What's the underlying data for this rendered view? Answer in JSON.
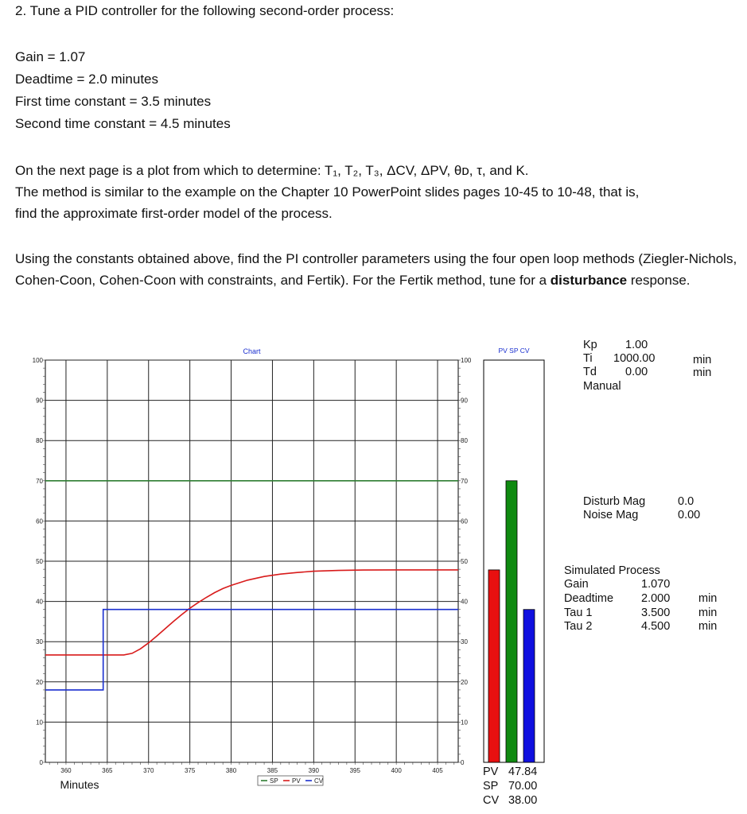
{
  "question": {
    "title": "2. Tune a PID controller for the following second-order process:",
    "params": [
      "Gain = 1.07",
      "Deadtime = 2.0 minutes",
      "First time constant = 3.5 minutes",
      "Second time constant = 4.5 minutes"
    ],
    "paragraph1_line1": "On the next page is a plot from which to determine: T₁, T₂, T₃, ΔCV, ΔPV, θᴅ, τ, and K.",
    "paragraph1_line2": "The method is similar to the example on the Chapter 10 PowerPoint slides pages 10-45 to 10-48, that is,",
    "paragraph1_line3": "find the approximate first-order model of the process.",
    "paragraph2_text": "Using the constants obtained above, find the PI controller parameters using the four open loop methods (Ziegler-Nichols, Cohen-Coon, Cohen-Coon with constraints, and Fertik). For the Fertik method, tune for a ",
    "paragraph2_bold": "disturbance",
    "paragraph2_end": " response."
  },
  "chart_data": [
    {
      "type": "line",
      "title": "Chart",
      "xlabel": "Minutes",
      "ylabel": "",
      "xlim": [
        357.5,
        407.5
      ],
      "ylim": [
        0,
        100
      ],
      "x_ticks": [
        360,
        365,
        370,
        375,
        380,
        385,
        390,
        395,
        400,
        405
      ],
      "y_ticks": [
        0,
        10,
        20,
        30,
        40,
        50,
        60,
        70,
        80,
        90,
        100
      ],
      "grid": true,
      "legend": {
        "placement": "bottom-center",
        "items": [
          "SP",
          "PV",
          "CV"
        ]
      },
      "series": [
        {
          "name": "SP",
          "color": "#2e7d32",
          "x": [
            357.5,
            407.5
          ],
          "y": [
            70,
            70
          ]
        },
        {
          "name": "PV",
          "color": "#d81b1b",
          "x": [
            357.5,
            367,
            368,
            369,
            370,
            371,
            372,
            373,
            374,
            375,
            376,
            377,
            378,
            379,
            380,
            382,
            384,
            386,
            388,
            390,
            393,
            396,
            400,
            407.5
          ],
          "y": [
            26.7,
            26.7,
            27.1,
            28.2,
            29.7,
            31.4,
            33.2,
            35.0,
            36.7,
            38.3,
            39.7,
            41.0,
            42.2,
            43.2,
            44.0,
            45.3,
            46.2,
            46.8,
            47.2,
            47.5,
            47.7,
            47.8,
            47.84,
            47.84
          ]
        },
        {
          "name": "CV",
          "color": "#1a2fcf",
          "x": [
            357.5,
            364.5,
            364.5,
            407.5
          ],
          "y": [
            18,
            18,
            38,
            38
          ]
        }
      ]
    },
    {
      "type": "bar",
      "title": "PV SP CV",
      "categories": [
        "PV",
        "SP",
        "CV"
      ],
      "values": [
        47.84,
        70.0,
        38.0
      ],
      "colors": [
        "#e81010",
        "#0f8a10",
        "#1010e0"
      ],
      "ylim": [
        0,
        100
      ]
    }
  ],
  "readout": {
    "pv_label": "PV",
    "pv_value": "47.84",
    "sp_label": "SP",
    "sp_value": "70.00",
    "cv_label": "CV",
    "cv_value": "38.00"
  },
  "controller": {
    "kp_label": "Kp",
    "kp_value": "1.00",
    "ti_label": "Ti",
    "ti_value": "1000.00",
    "ti_unit": "min",
    "td_label": "Td",
    "td_value": "0.00",
    "td_unit": "min",
    "mode": "Manual"
  },
  "disturbance": {
    "disturb_label": "Disturb Mag",
    "disturb_value": "0.0",
    "noise_label": "Noise Mag",
    "noise_value": "0.00"
  },
  "process": {
    "title": "Simulated Process",
    "gain_label": "Gain",
    "gain_value": "1.070",
    "deadtime_label": "Deadtime",
    "deadtime_value": "2.000",
    "deadtime_unit": "min",
    "tau1_label": "Tau 1",
    "tau1_value": "3.500",
    "tau1_unit": "min",
    "tau2_label": "Tau 2",
    "tau2_value": "4.500",
    "tau2_unit": "min"
  }
}
